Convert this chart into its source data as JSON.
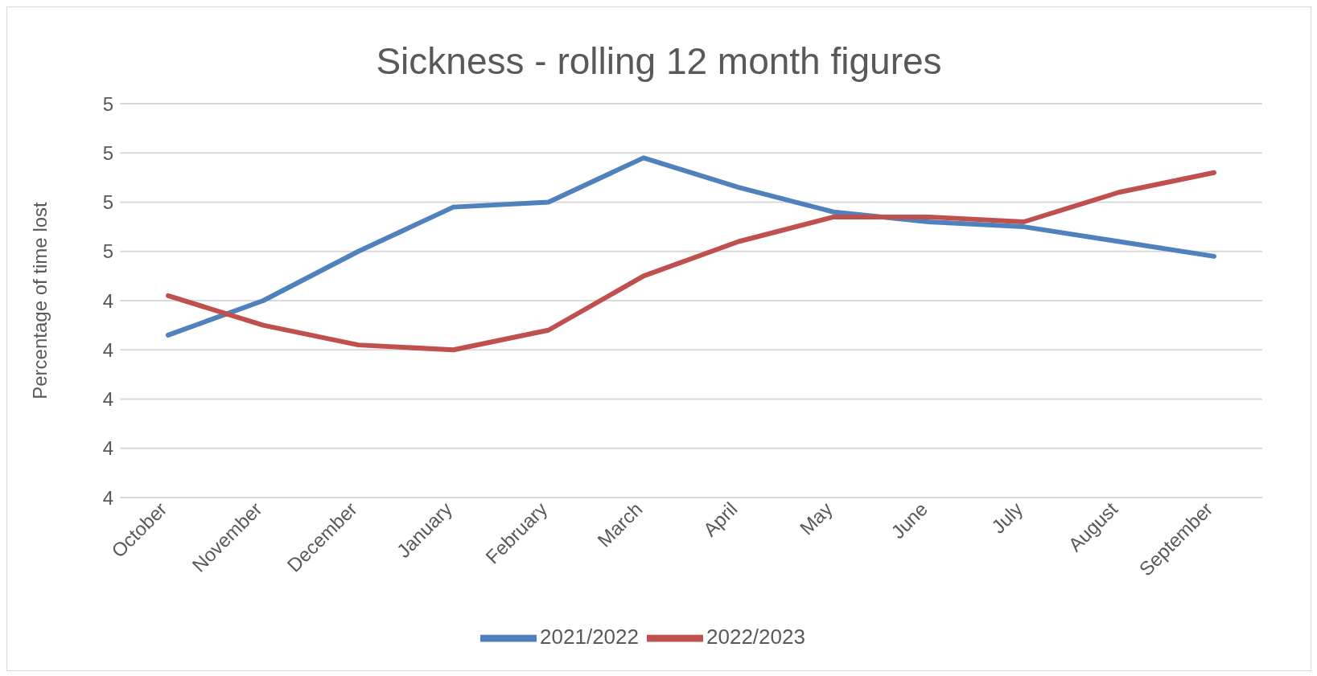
{
  "chart_data": {
    "type": "line",
    "title": "Sickness - rolling 12 month figures",
    "ylabel": "Percentage of time lost",
    "categories": [
      "October",
      "November",
      "December",
      "January",
      "February",
      "March",
      "April",
      "May",
      "June",
      "July",
      "August",
      "September"
    ],
    "series": [
      {
        "name": "2021/2022",
        "color": "#4f81bd",
        "values": [
          4.33,
          4.4,
          4.5,
          4.59,
          4.6,
          4.69,
          4.63,
          4.58,
          4.56,
          4.55,
          4.52,
          4.49
        ]
      },
      {
        "name": "2022/2023",
        "color": "#c0504d",
        "values": [
          4.41,
          4.35,
          4.31,
          4.3,
          4.34,
          4.45,
          4.52,
          4.57,
          4.57,
          4.56,
          4.62,
          4.66
        ]
      }
    ],
    "ylim": [
      4.0,
      4.8
    ],
    "yticks": [
      {
        "value": 4.0,
        "label": "4"
      },
      {
        "value": 4.1,
        "label": "4"
      },
      {
        "value": 4.2,
        "label": "4"
      },
      {
        "value": 4.3,
        "label": "4"
      },
      {
        "value": 4.4,
        "label": "4"
      },
      {
        "value": 4.5,
        "label": "5"
      },
      {
        "value": 4.6,
        "label": "5"
      },
      {
        "value": 4.7,
        "label": "5"
      },
      {
        "value": 4.8,
        "label": "5"
      }
    ],
    "grid": "y",
    "legend": "bottom",
    "marker": "none",
    "line_style": "solid"
  }
}
